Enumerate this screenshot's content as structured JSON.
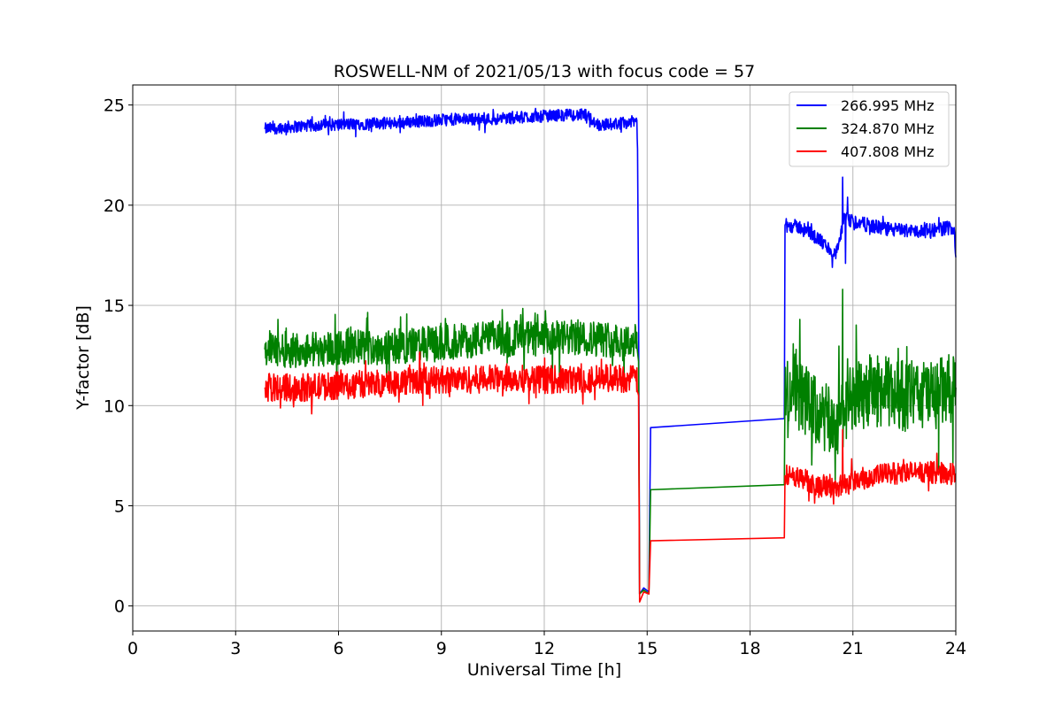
{
  "chart_data": {
    "type": "line",
    "title": "ROSWELL-NM of 2021/05/13 with focus code = 57",
    "xlabel": "Universal Time [h]",
    "ylabel": "Y-factor [dB]",
    "xlim": [
      0,
      24
    ],
    "ylim": [
      -1.25,
      26
    ],
    "xticks": [
      0,
      3,
      6,
      9,
      12,
      15,
      18,
      21,
      24
    ],
    "yticks": [
      0,
      5,
      10,
      15,
      20,
      25
    ],
    "grid": true,
    "legend_position": "top-right",
    "series": [
      {
        "name": "266.995 MHz",
        "color": "#0000ff",
        "points": [
          [
            3.85,
            23.8
          ],
          [
            4.5,
            23.9
          ],
          [
            5.5,
            24.0
          ],
          [
            6.5,
            24.05
          ],
          [
            7.5,
            24.1
          ],
          [
            8.5,
            24.2
          ],
          [
            9.5,
            24.3
          ],
          [
            10.5,
            24.3
          ],
          [
            11.5,
            24.4
          ],
          [
            12.5,
            24.5
          ],
          [
            13.2,
            24.5
          ],
          [
            13.6,
            24.0
          ],
          [
            14.3,
            24.1
          ],
          [
            14.7,
            24.2
          ],
          [
            14.72,
            22.8
          ],
          [
            14.75,
            15.0
          ],
          [
            14.78,
            0.6
          ],
          [
            14.9,
            0.9
          ],
          [
            15.05,
            0.7
          ],
          [
            15.1,
            8.9
          ],
          [
            19.0,
            9.35
          ],
          [
            19.02,
            19.0
          ],
          [
            19.5,
            18.9
          ],
          [
            20.0,
            18.3
          ],
          [
            20.5,
            17.5
          ],
          [
            20.65,
            18.5
          ],
          [
            20.75,
            19.3
          ],
          [
            21.2,
            19.1
          ],
          [
            22.0,
            18.8
          ],
          [
            23.0,
            18.7
          ],
          [
            23.95,
            18.9
          ],
          [
            24.0,
            17.4
          ]
        ],
        "noise": [
          {
            "x": [
              3.85,
              14.72
            ],
            "amp": 0.3
          },
          {
            "x": [
              19.02,
              24.0
            ],
            "amp": 0.35
          }
        ],
        "spikes": [
          [
            20.7,
            21.4
          ],
          [
            20.78,
            17.1
          ],
          [
            20.85,
            20.4
          ],
          [
            20.4,
            16.9
          ]
        ]
      },
      {
        "name": "324.870 MHz",
        "color": "#008000",
        "points": [
          [
            3.85,
            12.8
          ],
          [
            5.0,
            12.8
          ],
          [
            6.0,
            12.9
          ],
          [
            7.0,
            12.9
          ],
          [
            8.0,
            13.0
          ],
          [
            9.0,
            13.1
          ],
          [
            10.0,
            13.3
          ],
          [
            11.0,
            13.4
          ],
          [
            12.0,
            13.3
          ],
          [
            13.0,
            13.4
          ],
          [
            14.0,
            13.3
          ],
          [
            14.7,
            13.2
          ],
          [
            14.75,
            12.2
          ],
          [
            14.78,
            0.6
          ],
          [
            14.9,
            0.8
          ],
          [
            15.05,
            0.6
          ],
          [
            15.1,
            5.8
          ],
          [
            19.0,
            6.05
          ],
          [
            19.02,
            10.8
          ],
          [
            19.5,
            10.5
          ],
          [
            20.0,
            9.5
          ],
          [
            20.5,
            9.0
          ],
          [
            20.8,
            10.0
          ],
          [
            21.5,
            10.8
          ],
          [
            22.5,
            10.5
          ],
          [
            23.5,
            10.6
          ],
          [
            24.0,
            10.9
          ]
        ],
        "noise": [
          {
            "x": [
              3.85,
              14.72
            ],
            "amp": 0.9
          },
          {
            "x": [
              19.02,
              24.0
            ],
            "amp": 1.8
          }
        ],
        "spikes": [
          [
            20.7,
            15.8
          ]
        ]
      },
      {
        "name": "407.808 MHz",
        "color": "#ff0000",
        "points": [
          [
            3.85,
            10.9
          ],
          [
            5.0,
            10.9
          ],
          [
            6.0,
            11.0
          ],
          [
            7.0,
            11.1
          ],
          [
            8.0,
            11.2
          ],
          [
            9.0,
            11.3
          ],
          [
            10.0,
            11.3
          ],
          [
            11.0,
            11.4
          ],
          [
            12.0,
            11.3
          ],
          [
            13.0,
            11.3
          ],
          [
            14.0,
            11.4
          ],
          [
            14.7,
            11.3
          ],
          [
            14.75,
            10.5
          ],
          [
            14.78,
            0.2
          ],
          [
            14.9,
            0.7
          ],
          [
            15.05,
            0.6
          ],
          [
            15.1,
            3.25
          ],
          [
            19.0,
            3.4
          ],
          [
            19.02,
            6.5
          ],
          [
            19.5,
            6.4
          ],
          [
            20.0,
            6.0
          ],
          [
            20.5,
            5.9
          ],
          [
            21.0,
            6.3
          ],
          [
            22.0,
            6.6
          ],
          [
            23.0,
            6.7
          ],
          [
            24.0,
            6.6
          ]
        ],
        "noise": [
          {
            "x": [
              3.85,
              14.72
            ],
            "amp": 0.7
          },
          {
            "x": [
              19.02,
              24.0
            ],
            "amp": 0.55
          }
        ],
        "spikes": [
          [
            20.7,
            8.8
          ]
        ]
      }
    ]
  }
}
